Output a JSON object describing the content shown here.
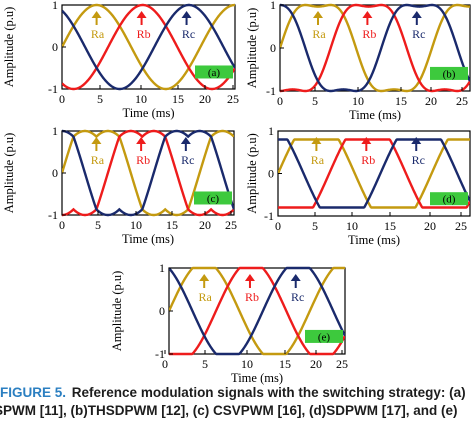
{
  "figure": {
    "caption_label": "FIGURE 5.",
    "caption_line1": "Reference modulation signals with the switching strategy: (a)",
    "caption_line2": "SPWM [11], (b)THSDPWM [12], (c) CSVPWM [16], (d)SDPWM [17], and (e)"
  },
  "colors": {
    "Ra": "#c49a10",
    "Rb": "#ee1c1c",
    "Rc": "#1a2a6c",
    "box": "#3dc93d",
    "axis": "#000000"
  },
  "chart_data": [
    {
      "type": "line",
      "panel_label": "(a)",
      "waveform": "sinusoidal",
      "xlabel": "Time (ms)",
      "ylabel": "Amplitude (p.u)",
      "xlim": [
        0,
        25
      ],
      "ylim": [
        -1,
        1
      ],
      "x_ticks": [
        "0",
        "5",
        "10",
        "15",
        "20",
        "25"
      ],
      "y_ticks": [
        "-1",
        "0",
        "1"
      ],
      "fundamental_hz": 50,
      "series": [
        {
          "name": "Ra",
          "phase_deg": 0,
          "peak": 1.0
        },
        {
          "name": "Rb",
          "phase_deg": -120,
          "peak": 1.0
        },
        {
          "name": "Rc",
          "phase_deg": 120,
          "peak": 1.0
        }
      ],
      "arrows": [
        {
          "label": "Ra",
          "x": 5
        },
        {
          "label": "Rb",
          "x": 11.5
        },
        {
          "label": "Rc",
          "x": 18
        }
      ]
    },
    {
      "type": "line",
      "panel_label": "(b)",
      "waveform": "third-harmonic injected sinusoidal",
      "xlabel": "Time (ms)",
      "ylabel": "Amplitude (p.u)",
      "xlim": [
        0,
        25
      ],
      "ylim": [
        -1,
        1
      ],
      "x_ticks": [
        "0",
        "5",
        "10",
        "15",
        "20",
        "25"
      ],
      "y_ticks": [
        "-1",
        "0",
        "1"
      ],
      "fundamental_hz": 50,
      "series": [
        {
          "name": "Ra",
          "phase_deg": 0,
          "peak": 1.0
        },
        {
          "name": "Rb",
          "phase_deg": -120,
          "peak": 1.0
        },
        {
          "name": "Rc",
          "phase_deg": 120,
          "peak": 1.0
        }
      ],
      "arrows": [
        {
          "label": "Ra",
          "x": 5
        },
        {
          "label": "Rb",
          "x": 11.5
        },
        {
          "label": "Rc",
          "x": 18
        }
      ]
    },
    {
      "type": "line",
      "panel_label": "(c)",
      "waveform": "space-vector min-max injected sinusoidal",
      "xlabel": "Time (ms)",
      "ylabel": "Amplitude (p.u)",
      "xlim": [
        0,
        25
      ],
      "ylim": [
        -1,
        1
      ],
      "x_ticks": [
        "0",
        "5",
        "10",
        "15",
        "20",
        "25"
      ],
      "y_ticks": [
        "-1",
        "0",
        "1"
      ],
      "fundamental_hz": 50,
      "series": [
        {
          "name": "Ra",
          "phase_deg": 0,
          "peak": 1.0
        },
        {
          "name": "Rb",
          "phase_deg": -120,
          "peak": 1.0
        },
        {
          "name": "Rc",
          "phase_deg": 120,
          "peak": 1.0
        }
      ],
      "arrows": [
        {
          "label": "Ra",
          "x": 5
        },
        {
          "label": "Rb",
          "x": 11.5
        },
        {
          "label": "Rc",
          "x": 18
        }
      ]
    },
    {
      "type": "line",
      "panel_label": "(d)",
      "waveform": "trapezoidal",
      "xlabel": "Time (ms)",
      "ylabel": "Amplitude (p.u)",
      "xlim": [
        0,
        25
      ],
      "ylim": [
        -1,
        1
      ],
      "x_ticks": [
        "0",
        "5",
        "10",
        "15",
        "20",
        "25"
      ],
      "y_ticks": [
        "-1",
        "0",
        "1"
      ],
      "fundamental_hz": 50,
      "series": [
        {
          "name": "Ra",
          "phase_deg": 0,
          "peak": 1.0
        },
        {
          "name": "Rb",
          "phase_deg": -120,
          "peak": 1.0
        },
        {
          "name": "Rc",
          "phase_deg": 120,
          "peak": 1.0
        }
      ],
      "arrows": [
        {
          "label": "Ra",
          "x": 5
        },
        {
          "label": "Rb",
          "x": 11.5
        },
        {
          "label": "Rc",
          "x": 18
        }
      ]
    },
    {
      "type": "line",
      "panel_label": "(e)",
      "waveform": "clipped sinusoidal",
      "xlabel": "Time (ms)",
      "ylabel": "Amplitude (p.u)",
      "xlim": [
        0,
        25
      ],
      "ylim": [
        -1,
        1
      ],
      "x_ticks": [
        "0",
        "5",
        "10",
        "15",
        "20",
        "25"
      ],
      "y_ticks": [
        "-1",
        "0",
        "1"
      ],
      "fundamental_hz": 50,
      "series": [
        {
          "name": "Ra",
          "phase_deg": 0,
          "peak": 1.0
        },
        {
          "name": "Rb",
          "phase_deg": -120,
          "peak": 1.0
        },
        {
          "name": "Rc",
          "phase_deg": 120,
          "peak": 1.0
        }
      ],
      "arrows": [
        {
          "label": "Ra",
          "x": 5
        },
        {
          "label": "Rb",
          "x": 11.5
        },
        {
          "label": "Rc",
          "x": 18
        }
      ]
    }
  ]
}
